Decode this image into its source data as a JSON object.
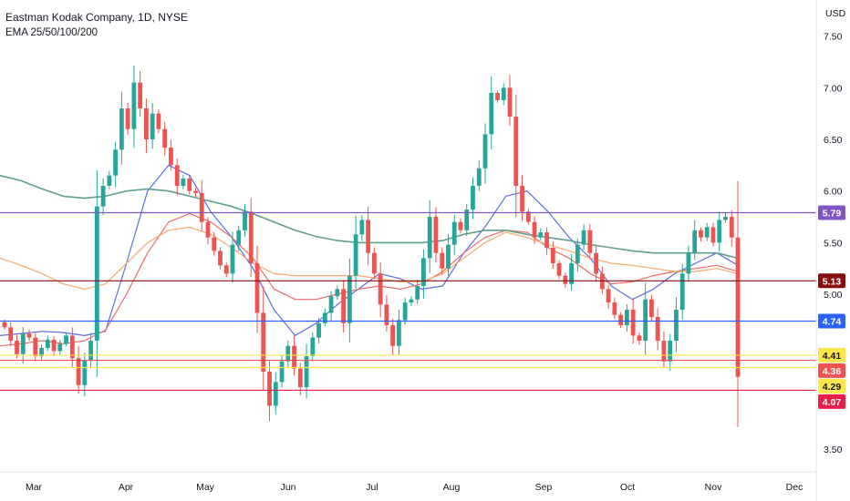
{
  "header": {
    "title": "Eastman Kodak Company, 1D, NYSE",
    "subtitle": "EMA 25/50/100/200"
  },
  "chart_data": {
    "type": "candlestick",
    "currency": "USD",
    "ylim": [
      3.28,
      7.85
    ],
    "y_ticks": [
      "7.50",
      "7.00",
      "6.50",
      "6.00",
      "5.50",
      "5.00",
      "3.50"
    ],
    "y_tick_values": [
      7.5,
      7.0,
      6.5,
      6.0,
      5.5,
      5.0,
      3.5
    ],
    "x_ticks": [
      "Mar",
      "Apr",
      "May",
      "Jun",
      "Jul",
      "Aug",
      "Sep",
      "Oct",
      "Nov",
      "Dec"
    ],
    "horizontal_levels": [
      {
        "label": "5.79",
        "value": 5.79,
        "color": "#7e57c2",
        "text_color": "#ffffff"
      },
      {
        "label": "5.13",
        "value": 5.13,
        "color": "#880e0e",
        "text_color": "#ffffff"
      },
      {
        "label": "4.74",
        "value": 4.74,
        "color": "#2962ff",
        "text_color": "#ffffff"
      },
      {
        "label": "4.41",
        "value": 4.41,
        "color": "#fbe64b",
        "text_color": "#131722"
      },
      {
        "label": "4.36",
        "value": 4.36,
        "color": "#ef5350",
        "text_color": "#ffffff"
      },
      {
        "label": "4.29",
        "value": 4.29,
        "color": "#fbe64b",
        "text_color": "#131722"
      },
      {
        "label": "4.07",
        "value": 4.07,
        "color": "#e91e4a",
        "text_color": "#ffffff"
      }
    ],
    "colors": {
      "up": "#26a69a",
      "down": "#ef5350"
    },
    "close_path": [
      4.68,
      4.55,
      4.42,
      4.62,
      4.58,
      4.4,
      4.48,
      4.56,
      4.45,
      4.52,
      4.6,
      4.38,
      4.12,
      4.36,
      4.55,
      5.85,
      6.05,
      6.15,
      6.4,
      6.8,
      6.6,
      7.05,
      6.8,
      6.5,
      6.75,
      6.6,
      6.42,
      6.25,
      6.05,
      6.12,
      6.0,
      5.98,
      5.7,
      5.55,
      5.42,
      5.28,
      5.2,
      5.48,
      5.62,
      5.8,
      5.3,
      4.82,
      4.25,
      3.92,
      4.15,
      4.35,
      4.5,
      4.28,
      4.1,
      4.4,
      4.58,
      4.72,
      4.82,
      4.98,
      5.05,
      4.72,
      5.18,
      5.58,
      5.72,
      5.4,
      5.2,
      4.9,
      4.7,
      4.5,
      4.75,
      4.92,
      4.95,
      5.08,
      5.35,
      5.75,
      5.4,
      5.25,
      5.48,
      5.7,
      5.62,
      5.82,
      6.05,
      6.22,
      6.55,
      6.95,
      6.88,
      7.0,
      6.72,
      6.05,
      5.8,
      5.7,
      5.55,
      5.6,
      5.45,
      5.3,
      5.18,
      5.1,
      5.3,
      5.48,
      5.62,
      5.4,
      5.2,
      5.05,
      4.92,
      4.8,
      4.7,
      4.85,
      4.6,
      4.55,
      4.95,
      4.78,
      4.55,
      4.35,
      4.55,
      4.85,
      5.2,
      5.4,
      5.62,
      5.55,
      5.65,
      5.5,
      5.72,
      5.75,
      5.55,
      4.2
    ],
    "ema": [
      {
        "period": 25,
        "color": "#5b6ee1",
        "values": [
          4.6,
          4.62,
          4.64,
          4.63,
          4.6,
          4.64,
          5.3,
          6.0,
          6.25,
          6.15,
          5.8,
          5.55,
          5.25,
          4.85,
          4.6,
          4.72,
          4.9,
          5.05,
          5.2,
          5.15,
          5.05,
          5.08,
          5.4,
          5.65,
          5.95,
          6.0,
          5.8,
          5.55,
          5.35,
          5.08,
          4.95,
          5.05,
          5.2,
          5.3,
          5.4,
          5.28
        ]
      },
      {
        "period": 50,
        "color": "#ef6c6c",
        "values": [
          4.5,
          4.52,
          4.55,
          4.52,
          4.55,
          4.65,
          5.0,
          5.4,
          5.7,
          5.78,
          5.7,
          5.55,
          5.35,
          5.05,
          4.95,
          4.95,
          5.0,
          5.05,
          5.08,
          5.05,
          5.1,
          5.22,
          5.4,
          5.55,
          5.62,
          5.6,
          5.45,
          5.35,
          5.2,
          5.1,
          5.12,
          5.18,
          5.22,
          5.25,
          5.28,
          5.22
        ]
      },
      {
        "period": 100,
        "color": "#f5a96b",
        "values": [
          5.35,
          5.28,
          5.2,
          5.1,
          5.05,
          5.1,
          5.3,
          5.5,
          5.62,
          5.65,
          5.58,
          5.45,
          5.3,
          5.2,
          5.18,
          5.18,
          5.18,
          5.18,
          5.15,
          5.12,
          5.12,
          5.2,
          5.35,
          5.5,
          5.6,
          5.55,
          5.48,
          5.42,
          5.35,
          5.3,
          5.28,
          5.25,
          5.22,
          5.22,
          5.25,
          5.2
        ]
      },
      {
        "period": 200,
        "color": "#5f9f8e",
        "values": [
          6.15,
          6.1,
          6.02,
          5.95,
          5.93,
          5.95,
          6.0,
          6.02,
          6.0,
          5.95,
          5.9,
          5.85,
          5.78,
          5.7,
          5.62,
          5.56,
          5.52,
          5.5,
          5.5,
          5.5,
          5.5,
          5.52,
          5.58,
          5.62,
          5.62,
          5.58,
          5.55,
          5.52,
          5.48,
          5.45,
          5.42,
          5.4,
          5.4,
          5.4,
          5.4,
          5.35
        ]
      }
    ]
  }
}
